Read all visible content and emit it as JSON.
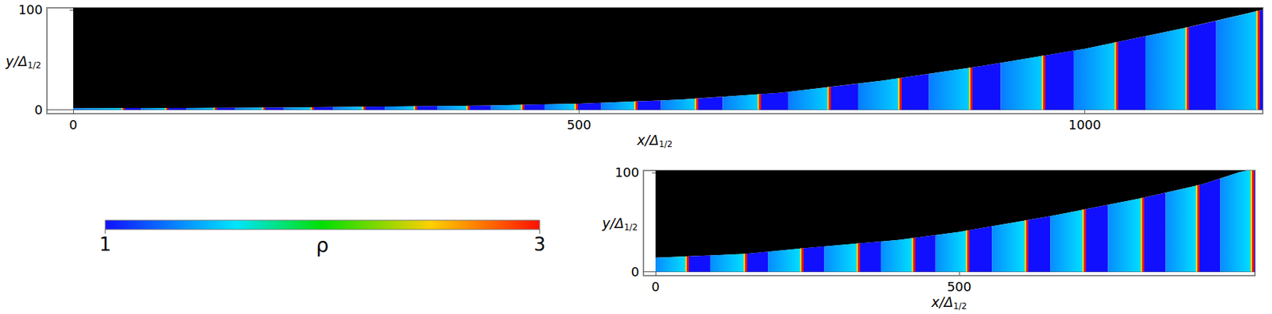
{
  "chart_data": [
    {
      "type": "density_field",
      "xlabel": "x/Δ1/2",
      "ylabel": "y/Δ1/2",
      "xlim": [
        -26,
        1176
      ],
      "ylim": [
        -4,
        102
      ],
      "xticks": [
        0,
        500,
        1000
      ],
      "yticks": [
        0,
        100
      ],
      "grid": false,
      "wall": {
        "x": [
          0,
          200,
          400,
          500,
          600,
          700,
          800,
          900,
          1000,
          1100,
          1176
        ],
        "y": [
          1.5,
          2,
          4,
          6,
          10,
          17,
          29,
          44,
          61,
          82,
          100
        ]
      },
      "snapshots": {
        "start": [
          0,
          67,
          112,
          160,
          208,
          257,
          308,
          360,
          413,
          466,
          522,
          581,
          642,
          707,
          776,
          846,
          917,
          989,
          1060,
          1130
        ],
        "front": [
          50,
          93,
          141,
          189,
          237,
          288,
          339,
          391,
          445,
          498,
          557,
          617,
          679,
          748,
          818,
          888,
          960,
          1032,
          1102,
          1172
        ],
        "end": [
          67,
          112,
          160,
          208,
          257,
          308,
          360,
          413,
          466,
          522,
          581,
          642,
          707,
          776,
          846,
          917,
          989,
          1060,
          1130,
          1176
        ]
      },
      "rho_unshocked": 1,
      "rho_shocked": 1.3,
      "rho_post_shock": 1.55,
      "rho_front": 3
    },
    {
      "type": "density_field",
      "xlabel": "x/Δ1/2",
      "ylabel": "y/Δ1/2",
      "xlim": [
        -20,
        987
      ],
      "ylim": [
        -4,
        102
      ],
      "xticks": [
        0,
        500
      ],
      "yticks": [
        0,
        100
      ],
      "grid": false,
      "wall": {
        "x": [
          0,
          150,
          250,
          400,
          500,
          650,
          800,
          900,
          960,
          987
        ],
        "y": [
          14,
          18,
          24,
          32,
          40,
          56,
          74,
          88,
          100,
          104
        ]
      },
      "snapshots": {
        "start": [
          0,
          90,
          185,
          278,
          371,
          461,
          554,
          650,
          745,
          840,
          930
        ],
        "front": [
          53,
          149,
          242,
          335,
          426,
          515,
          612,
          707,
          803,
          894,
          984
        ],
        "end": [
          90,
          185,
          278,
          371,
          461,
          554,
          650,
          745,
          840,
          930,
          987
        ]
      },
      "rho_unshocked": 1,
      "rho_shocked": 1.35,
      "rho_post_shock": 1.6,
      "rho_front": 3
    }
  ],
  "colorbar": {
    "range": [
      1,
      3
    ],
    "ticks": [
      1,
      3
    ],
    "label": "ρ"
  }
}
